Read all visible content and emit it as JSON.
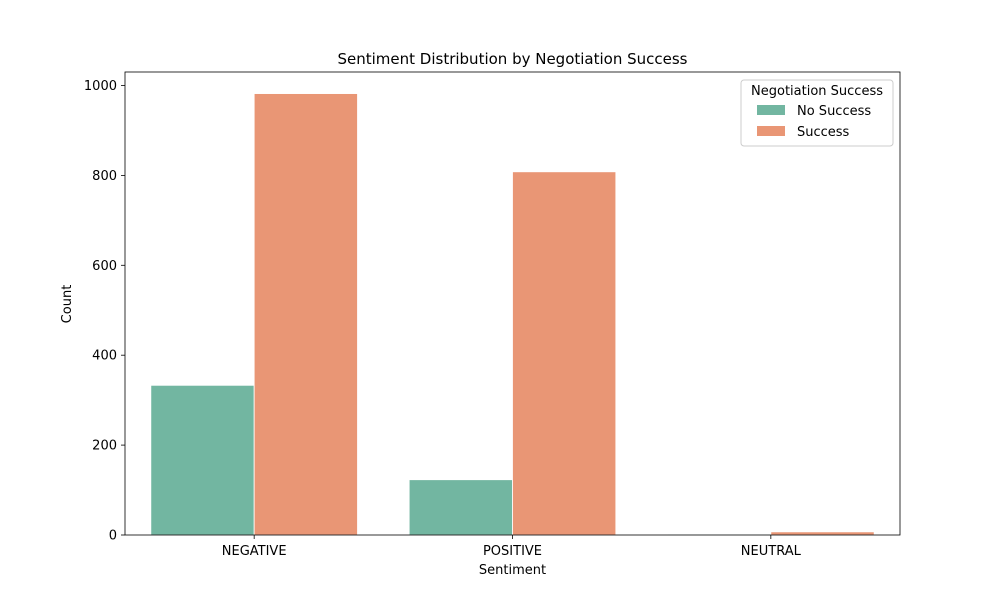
{
  "chart_data": {
    "type": "bar",
    "title": "Sentiment Distribution by Negotiation Success",
    "xlabel": "Sentiment",
    "ylabel": "Count",
    "categories": [
      "NEGATIVE",
      "POSITIVE",
      "NEUTRAL"
    ],
    "series": [
      {
        "name": "No Success",
        "values": [
          333,
          123,
          2
        ],
        "color": "#72b6a1"
      },
      {
        "name": "Success",
        "values": [
          982,
          808,
          7
        ],
        "color": "#e99675"
      }
    ],
    "ylim": [
      0,
      1030
    ],
    "yticks": [
      0,
      200,
      400,
      600,
      800,
      1000
    ],
    "grid": false,
    "legend": {
      "title": "Negotiation Success",
      "placement": "top-right"
    }
  }
}
